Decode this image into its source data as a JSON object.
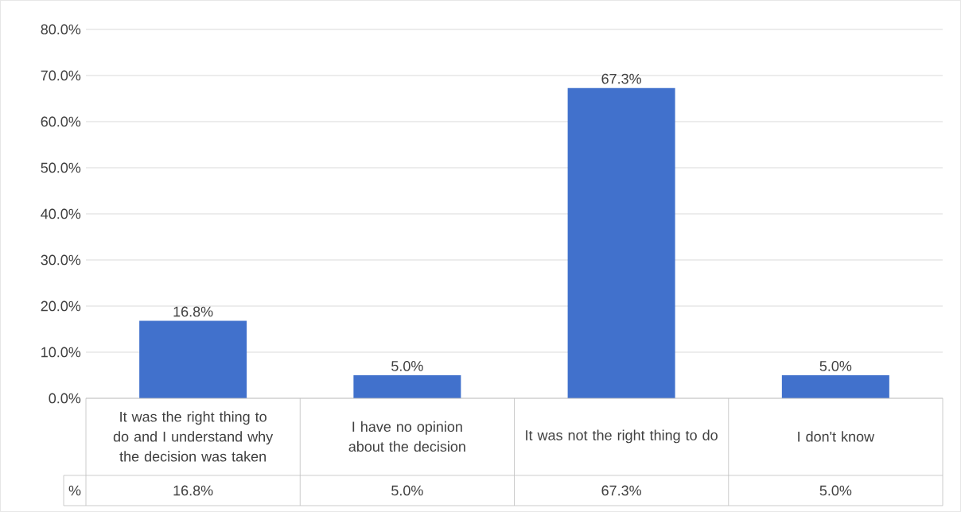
{
  "chart_data": {
    "type": "bar",
    "categories": [
      "It was the right thing to do and I understand why the decision was taken",
      "I have no opinion about the decision",
      "It was not the right thing to do",
      "I don't know"
    ],
    "series": [
      {
        "name": "%",
        "color": "#4171cc",
        "values": [
          16.8,
          5.0,
          67.3,
          5.0
        ],
        "value_labels": [
          "16.8%",
          "5.0%",
          "67.3%",
          "5.0%"
        ]
      }
    ],
    "ylim": [
      0,
      80
    ],
    "yticks": [
      {
        "value": 0,
        "label": "0.0%"
      },
      {
        "value": 10,
        "label": "10.0%"
      },
      {
        "value": 20,
        "label": "20.0%"
      },
      {
        "value": 30,
        "label": "30.0%"
      },
      {
        "value": 40,
        "label": "40.0%"
      },
      {
        "value": 50,
        "label": "50.0%"
      },
      {
        "value": 60,
        "label": "60.0%"
      },
      {
        "value": 70,
        "label": "70.0%"
      },
      {
        "value": 80,
        "label": "80.0%"
      }
    ],
    "grid": "y"
  }
}
